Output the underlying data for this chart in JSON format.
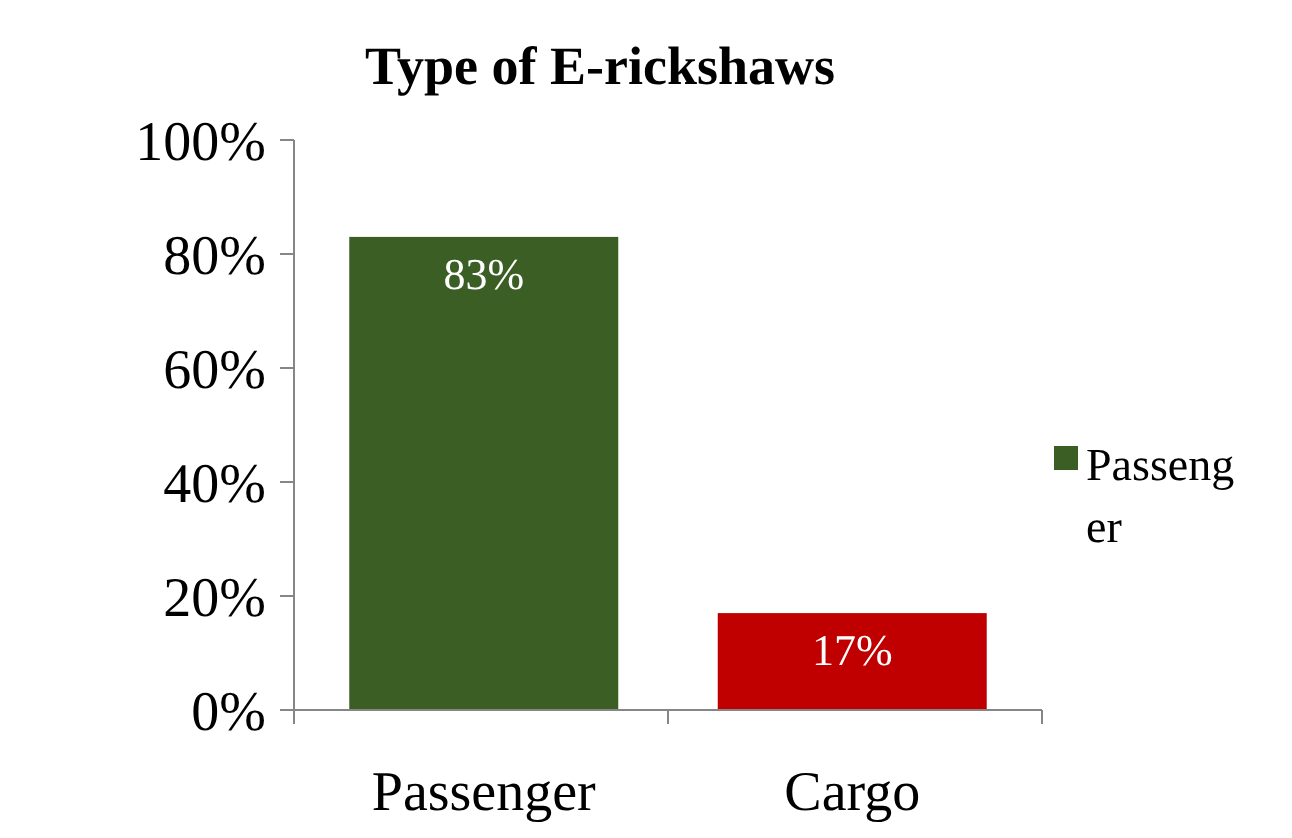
{
  "chart_data": {
    "type": "bar",
    "title": "Type of E-rickshaws",
    "categories": [
      "Passenger",
      "Cargo"
    ],
    "series": [
      {
        "name": "Passenger",
        "color": "#3b5e25",
        "colors": [
          "#3b5e25",
          "#c00000"
        ],
        "values": [
          83,
          17
        ],
        "value_labels": [
          "83%",
          "17%"
        ]
      }
    ],
    "ylim": [
      0,
      100
    ],
    "yticks": [
      {
        "value": 0,
        "label": "0%"
      },
      {
        "value": 20,
        "label": "20%"
      },
      {
        "value": 40,
        "label": "40%"
      },
      {
        "value": 60,
        "label": "60%"
      },
      {
        "value": 80,
        "label": "80%"
      },
      {
        "value": 100,
        "label": "100%"
      }
    ],
    "grid": false,
    "legend": "right"
  }
}
